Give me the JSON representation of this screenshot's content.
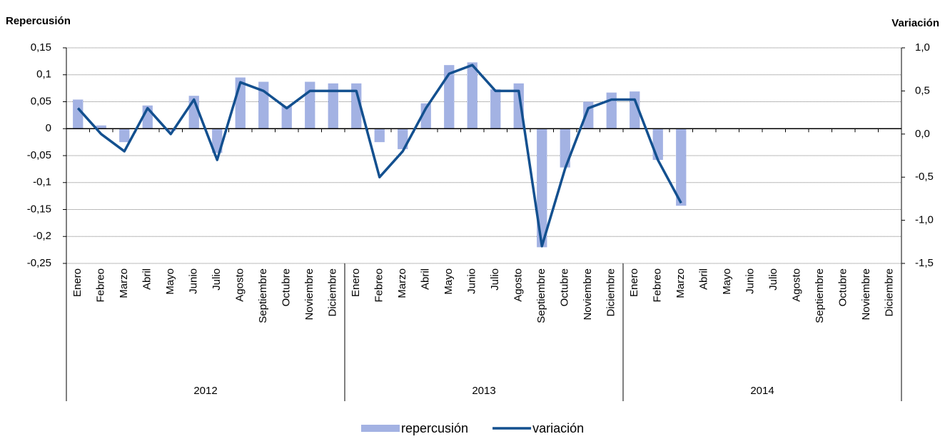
{
  "chart_data": {
    "type": "bar-line",
    "y_title": "Repercusión",
    "y2_title": "Variación",
    "categories": [
      "Enero",
      "Febreo",
      "Marzo",
      "Abril",
      "Mayo",
      "Junio",
      "Julio",
      "Agosto",
      "Septiembre",
      "Octubre",
      "Noviembre",
      "Diciembre",
      "Enero",
      "Febreo",
      "Marzo",
      "Abril",
      "Mayo",
      "Junio",
      "Julio",
      "Agosto",
      "Septiembre",
      "Octubre",
      "Noviembre",
      "Diciembre",
      "Enero",
      "Febreo",
      "Marzo",
      "Abril",
      "Mayo",
      "Junio",
      "Julio",
      "Agosto",
      "Septiembre",
      "Octubre",
      "Noviembre",
      "Diciembre"
    ],
    "x_groups": [
      "2012",
      "2013",
      "2014"
    ],
    "series": [
      {
        "name": "repercusión",
        "type": "bar",
        "color": "#a3b2e3",
        "values": [
          0.054,
          0.006,
          -0.025,
          0.043,
          -0.004,
          0.061,
          -0.045,
          0.095,
          0.087,
          0.042,
          0.087,
          0.084,
          0.084,
          -0.025,
          -0.038,
          0.047,
          0.118,
          0.123,
          0.073,
          0.084,
          -0.22,
          -0.072,
          0.05,
          0.067,
          0.069,
          -0.058,
          -0.143,
          null,
          null,
          null,
          null,
          null,
          null,
          null,
          null,
          null
        ]
      },
      {
        "name": "variación",
        "type": "line",
        "axis": "y2",
        "color": "#13508f",
        "values": [
          0.3,
          0.0,
          -0.2,
          0.3,
          0.0,
          0.4,
          -0.3,
          0.6,
          0.5,
          0.3,
          0.5,
          0.5,
          0.5,
          -0.5,
          -0.2,
          0.3,
          0.7,
          0.8,
          0.5,
          0.5,
          -1.3,
          -0.4,
          0.3,
          0.4,
          0.4,
          -0.3,
          -0.8,
          null,
          null,
          null,
          null,
          null,
          null,
          null,
          null,
          null
        ]
      }
    ],
    "ylim": [
      -0.25,
      0.15
    ],
    "yticks": [
      {
        "value": 0.15,
        "label": "0,15"
      },
      {
        "value": 0.1,
        "label": "0,1"
      },
      {
        "value": 0.05,
        "label": "0,05"
      },
      0,
      {
        "value": -0.05,
        "label": "-0,05"
      },
      {
        "value": -0.1,
        "label": "-0,1"
      },
      {
        "value": -0.15,
        "label": "-0,15"
      },
      {
        "value": -0.2,
        "label": "-0,2"
      },
      {
        "value": -0.25,
        "label": "-0,25"
      }
    ],
    "y2lim": [
      -1.5,
      1.0
    ],
    "y2ticks": [
      {
        "value": 1.0,
        "label": "1,0"
      },
      {
        "value": 0.5,
        "label": "0,5"
      },
      {
        "value": 0.0,
        "label": "0,0"
      },
      {
        "value": -0.5,
        "label": "-0,5"
      },
      {
        "value": -1.0,
        "label": "-1,0"
      },
      {
        "value": -1.5,
        "label": "-1,5"
      }
    ],
    "grid": true,
    "legend": "bottom"
  }
}
